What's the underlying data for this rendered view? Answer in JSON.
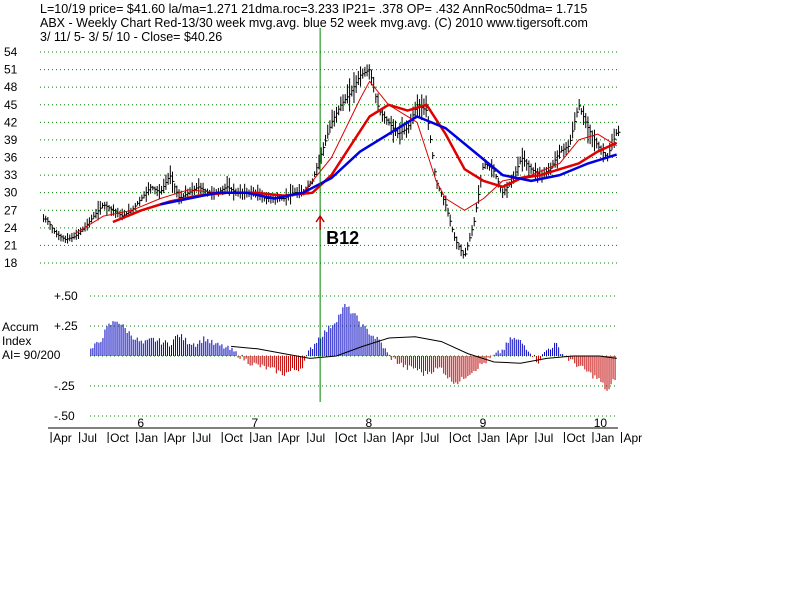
{
  "header": {
    "line1": "L=10/19  price= $41.60  la/ma=1.271 21dma.roc=3.233 IP21= .378 OP= .432 AnnRoc50dma= 1.715",
    "line2": "ABX  - Weekly Chart  Red-13/30 week mvg.avg.  blue 52 week mvg.avg.  (C) 2010 www.tigersoft.com",
    "line3": " 3/ 11/ 5- 3/ 5/ 10 -     Close= $40.26"
  },
  "indicator_label": {
    "line1": "Accum",
    "line2": "Index",
    "line3": "AI= 90/200"
  },
  "signal": {
    "label": "B12",
    "date": "2007-08"
  },
  "colors": {
    "price_bars": "#000000",
    "ma_13": "#e00000",
    "ma_30": "#e00000",
    "ma_52": "#0000e0",
    "grid": "#008000",
    "accum_positive": "#0000c0",
    "accum_negative": "#c00000",
    "signal_line": "#008000",
    "signal_arrow": "#c00000"
  },
  "chart_data": [
    {
      "type": "line",
      "title": "ABX - Weekly Chart",
      "x_type": "date",
      "xlim": [
        "2005-03-11",
        "2010-03-05"
      ],
      "ylim": [
        18,
        54
      ],
      "y_ticks": [
        54,
        51,
        48,
        45,
        42,
        39,
        36,
        33,
        30,
        27,
        24,
        21,
        18
      ],
      "grid": true,
      "year_ticks": [
        "6",
        "7",
        "8",
        "9",
        "10"
      ],
      "month_ticks": [
        "Apr",
        "Jul",
        "Oct",
        "Jan",
        "Apr",
        "Jul",
        "Oct",
        "Jan",
        "Apr",
        "Jul",
        "Oct",
        "Jan",
        "Apr",
        "Jul",
        "Oct",
        "Jan",
        "Apr",
        "Jul",
        "Oct",
        "Jan",
        "Apr",
        "Jul",
        "Oct",
        "Jan"
      ],
      "series": [
        {
          "name": "price",
          "x": [
            "2005-03",
            "2005-04",
            "2005-05",
            "2005-06",
            "2005-07",
            "2005-08",
            "2005-09",
            "2005-10",
            "2005-11",
            "2005-12",
            "2006-01",
            "2006-02",
            "2006-03",
            "2006-04",
            "2006-05",
            "2006-06",
            "2006-07",
            "2006-08",
            "2006-09",
            "2006-10",
            "2006-11",
            "2006-12",
            "2007-01",
            "2007-02",
            "2007-03",
            "2007-04",
            "2007-05",
            "2007-06",
            "2007-07",
            "2007-08",
            "2007-09",
            "2007-10",
            "2007-11",
            "2007-12",
            "2008-01",
            "2008-02",
            "2008-03",
            "2008-04",
            "2008-05",
            "2008-06",
            "2008-07",
            "2008-08",
            "2008-09",
            "2008-10",
            "2008-11",
            "2008-12",
            "2009-01",
            "2009-02",
            "2009-03",
            "2009-04",
            "2009-05",
            "2009-06",
            "2009-07",
            "2009-08",
            "2009-09",
            "2009-10",
            "2009-11",
            "2009-12",
            "2010-01",
            "2010-02",
            "2010-03"
          ],
          "values": [
            25.5,
            23,
            22,
            22.5,
            24,
            26,
            28,
            27,
            26,
            27,
            29,
            31,
            30,
            33,
            29,
            30,
            31,
            30,
            30,
            31,
            30,
            30,
            30,
            29,
            29,
            29,
            30,
            30,
            32,
            37,
            42,
            45,
            47,
            50,
            51,
            44,
            42,
            40,
            41,
            45,
            44,
            32,
            28,
            22,
            19,
            25,
            35,
            34,
            30,
            32,
            36,
            34,
            33,
            34,
            37,
            38,
            45,
            41,
            38,
            36,
            40.3
          ]
        },
        {
          "name": "13 week mvg.avg.",
          "x": [
            "2005-06",
            "2005-09",
            "2005-12",
            "2006-03",
            "2006-06",
            "2006-09",
            "2006-12",
            "2007-03",
            "2007-06",
            "2007-09",
            "2007-12",
            "2008-01",
            "2008-03",
            "2008-06",
            "2008-08",
            "2008-09",
            "2008-11",
            "2009-01",
            "2009-03",
            "2009-06",
            "2009-09",
            "2009-11",
            "2010-01",
            "2010-03"
          ],
          "values": [
            23,
            26,
            27,
            29,
            30.5,
            30,
            30,
            29,
            30,
            36,
            46,
            49,
            45,
            42,
            32,
            29,
            27,
            29,
            32,
            33,
            35,
            39,
            40,
            38
          ]
        },
        {
          "name": "30 week mvg.avg.",
          "x": [
            "2005-10",
            "2006-01",
            "2006-04",
            "2006-07",
            "2006-10",
            "2007-01",
            "2007-04",
            "2007-07",
            "2007-09",
            "2007-11",
            "2008-01",
            "2008-03",
            "2008-05",
            "2008-07",
            "2008-09",
            "2008-11",
            "2009-01",
            "2009-03",
            "2009-05",
            "2009-07",
            "2009-09",
            "2009-11",
            "2010-01",
            "2010-03"
          ],
          "values": [
            25,
            27,
            28.5,
            29.5,
            30,
            30,
            29.5,
            30,
            33,
            38,
            43,
            45,
            44,
            45,
            40,
            34,
            32,
            31,
            32.5,
            33,
            34,
            35,
            37,
            38.5
          ]
        },
        {
          "name": "52 week mvg.avg.",
          "x": [
            "2006-03",
            "2006-06",
            "2006-09",
            "2006-12",
            "2007-03",
            "2007-06",
            "2007-09",
            "2007-12",
            "2008-03",
            "2008-06",
            "2008-09",
            "2008-12",
            "2009-03",
            "2009-06",
            "2009-09",
            "2009-12",
            "2010-03"
          ],
          "values": [
            28,
            29,
            30,
            30,
            29,
            30,
            32.5,
            37,
            40,
            43,
            41,
            37,
            33,
            32,
            33,
            35,
            36.5
          ]
        }
      ]
    },
    {
      "type": "bar",
      "title": "Accum Index",
      "x_type": "date",
      "ylim": [
        -0.5,
        0.5
      ],
      "y_ticks": [
        "+.50",
        "+.25",
        "0",
        "-.25",
        "-.50"
      ],
      "grid": true,
      "series": [
        {
          "name": "Accum Index",
          "x": [
            "2005-03",
            "2005-04",
            "2005-05",
            "2005-06",
            "2005-07",
            "2005-08",
            "2005-09",
            "2005-10",
            "2005-11",
            "2005-12",
            "2006-01",
            "2006-02",
            "2006-03",
            "2006-04",
            "2006-05",
            "2006-06",
            "2006-07",
            "2006-08",
            "2006-09",
            "2006-10",
            "2006-11",
            "2006-12",
            "2007-01",
            "2007-02",
            "2007-03",
            "2007-04",
            "2007-05",
            "2007-06",
            "2007-07",
            "2007-08",
            "2007-09",
            "2007-10",
            "2007-11",
            "2007-12",
            "2008-01",
            "2008-02",
            "2008-03",
            "2008-04",
            "2008-05",
            "2008-06",
            "2008-07",
            "2008-08",
            "2008-09",
            "2008-10",
            "2008-11",
            "2008-12",
            "2009-01",
            "2009-02",
            "2009-03",
            "2009-04",
            "2009-05",
            "2009-06",
            "2009-07",
            "2009-08",
            "2009-09",
            "2009-10",
            "2009-11",
            "2009-12",
            "2010-01",
            "2010-02",
            "2010-03"
          ],
          "values": [
            0.05,
            0.12,
            0.25,
            0.3,
            0.22,
            0.15,
            0.1,
            0.14,
            0.12,
            0.1,
            0.18,
            0.12,
            0.1,
            0.15,
            0.1,
            0.08,
            0.05,
            0.0,
            -0.05,
            -0.08,
            -0.1,
            -0.12,
            -0.15,
            -0.12,
            -0.1,
            0.05,
            0.15,
            0.22,
            0.3,
            0.42,
            0.35,
            0.25,
            0.18,
            0.12,
            0.0,
            -0.05,
            -0.1,
            -0.1,
            -0.15,
            -0.12,
            -0.1,
            -0.2,
            -0.22,
            -0.15,
            -0.1,
            -0.05,
            0.0,
            0.05,
            0.15,
            0.12,
            0.05,
            -0.05,
            0.05,
            0.1,
            0.0,
            -0.05,
            -0.1,
            -0.15,
            -0.2,
            -0.3,
            -0.15
          ]
        },
        {
          "name": "Accum Index mvg.avg.",
          "x": [
            "2006-07",
            "2006-10",
            "2007-01",
            "2007-04",
            "2007-07",
            "2007-10",
            "2008-01",
            "2008-04",
            "2008-07",
            "2008-10",
            "2009-01",
            "2009-04",
            "2009-07",
            "2009-10",
            "2010-01",
            "2010-03"
          ],
          "values": [
            0.08,
            0.06,
            0.02,
            -0.02,
            0.0,
            0.08,
            0.15,
            0.16,
            0.12,
            0.02,
            -0.05,
            -0.06,
            -0.02,
            0.0,
            0.0,
            -0.02
          ]
        }
      ]
    }
  ]
}
